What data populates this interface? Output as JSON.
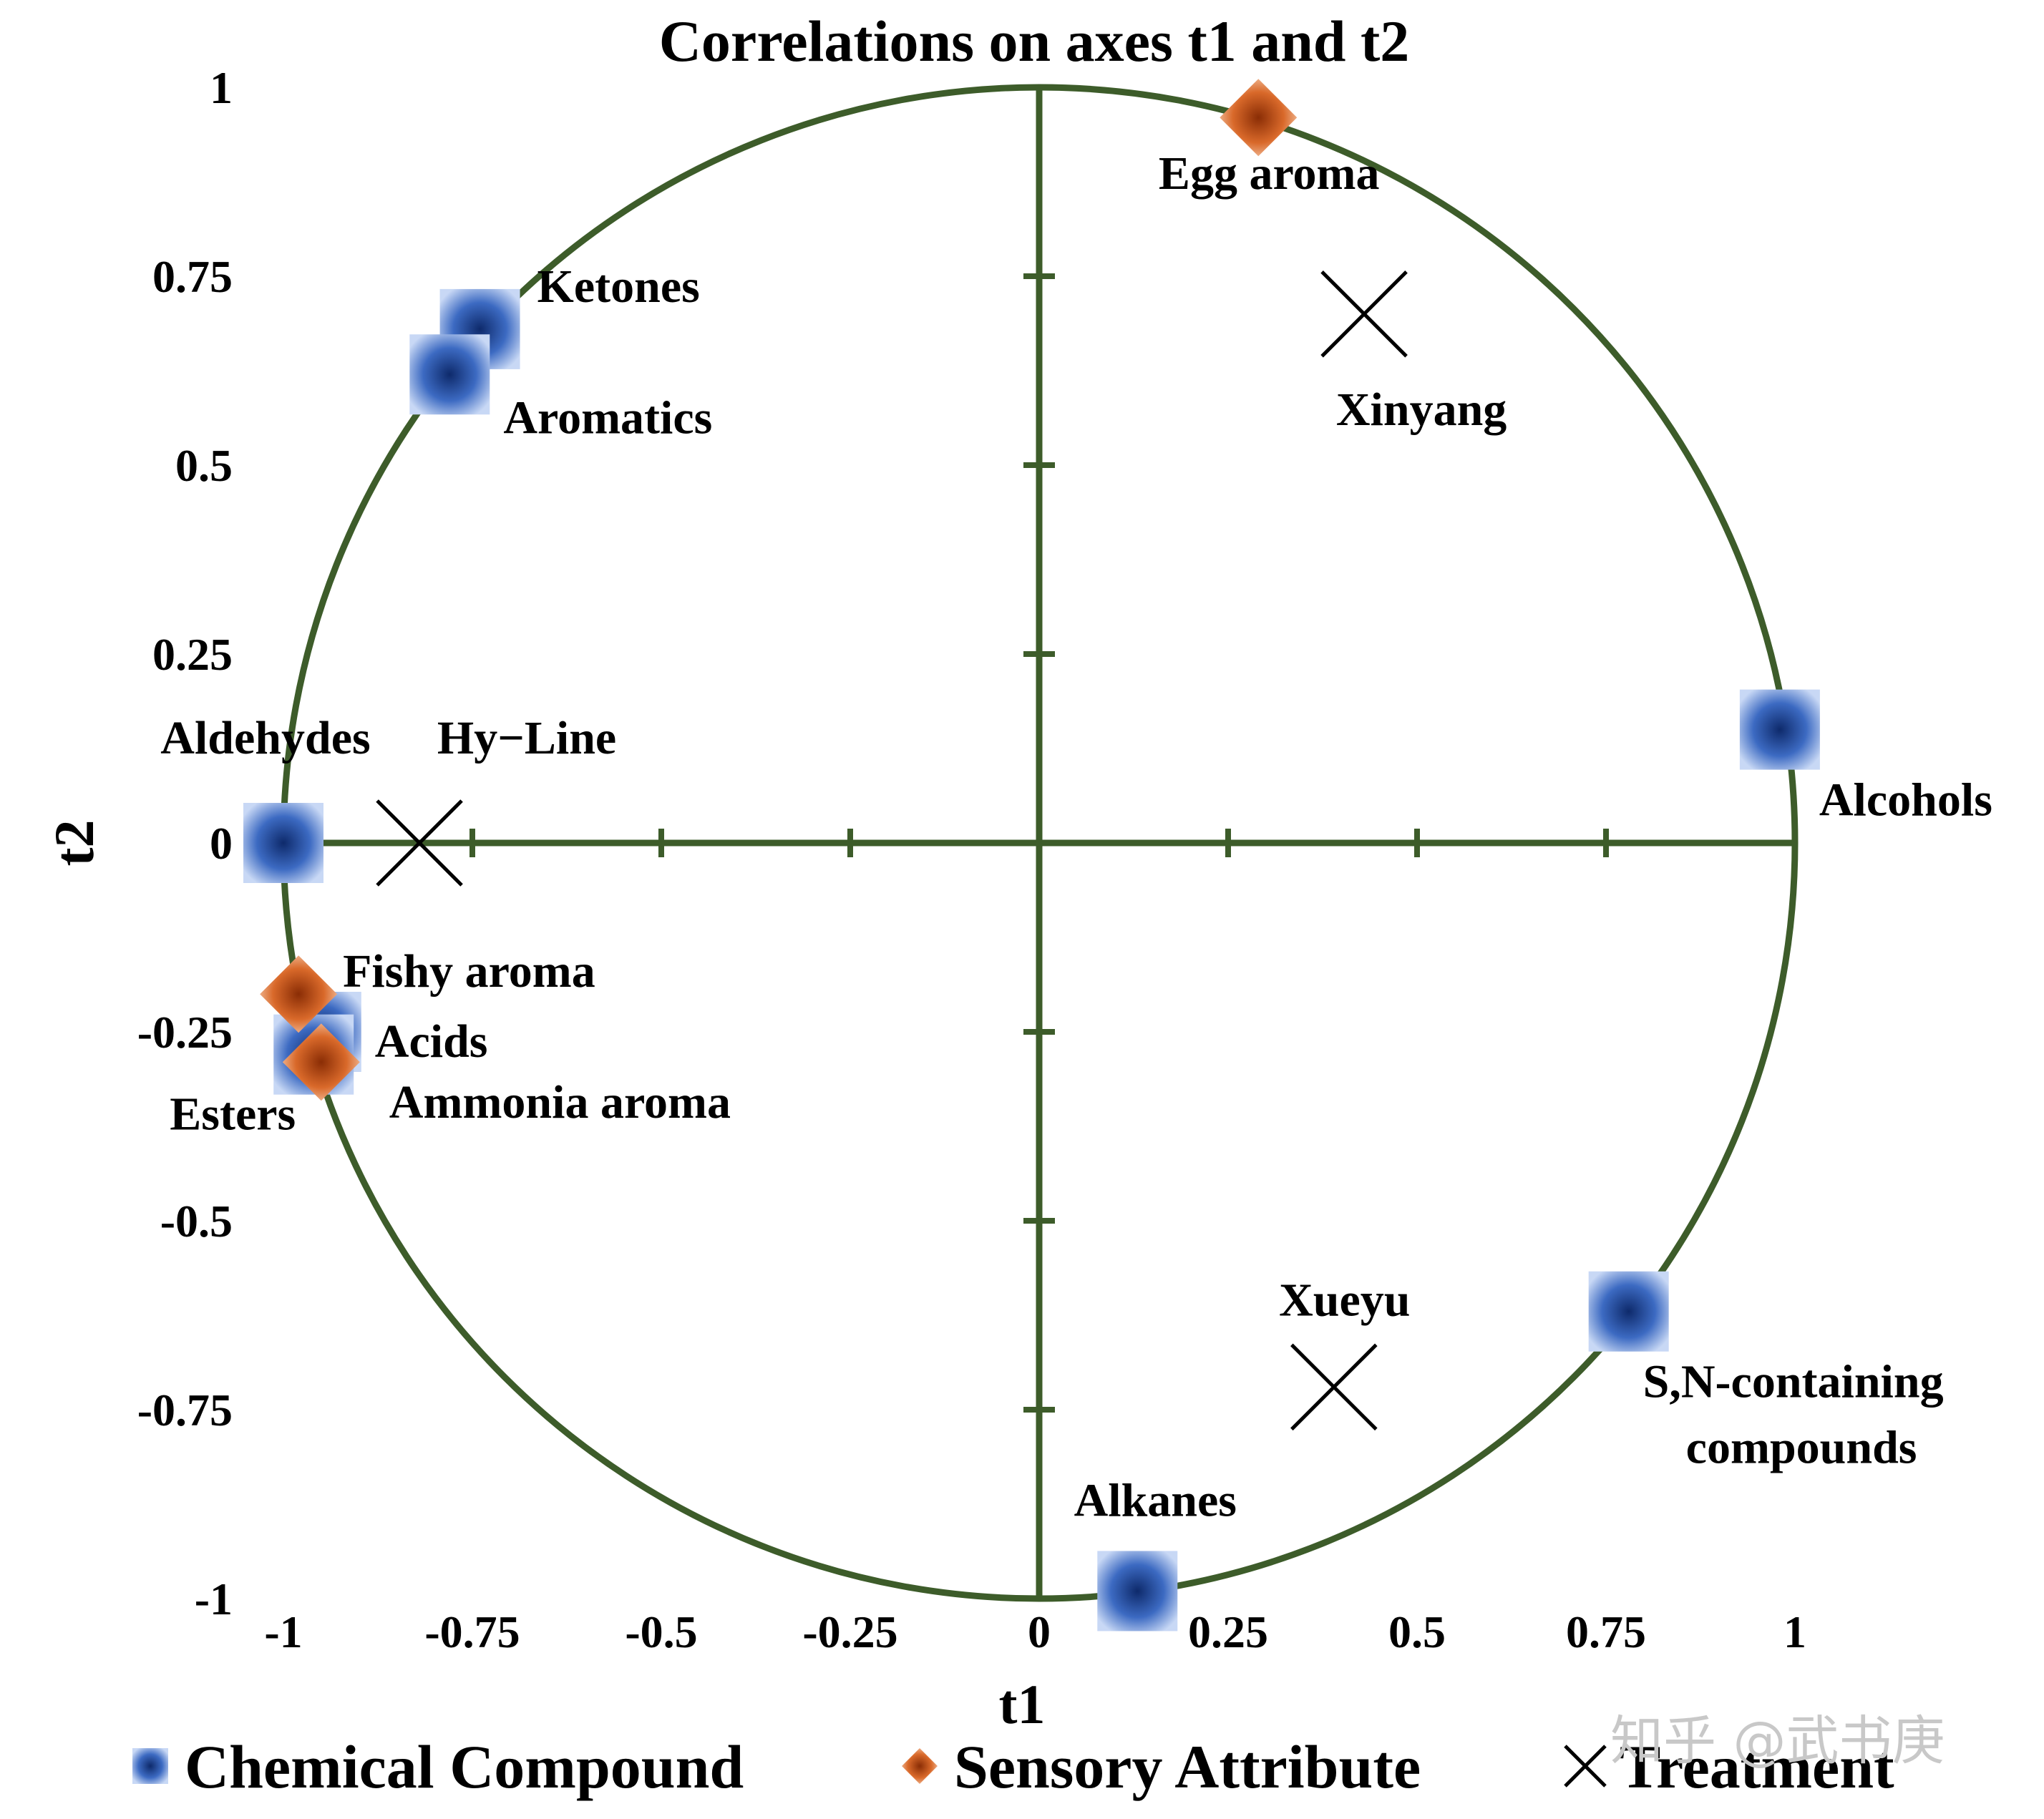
{
  "chart_data": {
    "type": "scatter",
    "title": "Correlations on axes t1 and t2",
    "xlabel": "t1",
    "ylabel": "t2",
    "xlim": [
      -1,
      1
    ],
    "ylim": [
      -1,
      1
    ],
    "x_ticks": [
      "-1",
      "-0.75",
      "-0.5",
      "-0.25",
      "0",
      "0.25",
      "0.5",
      "0.75",
      "1"
    ],
    "y_ticks": [
      "1",
      "0.75",
      "0.5",
      "0.25",
      "0",
      "-0.25",
      "-0.5",
      "-0.75",
      "-1"
    ],
    "unit_circle": true,
    "legend_position": "bottom",
    "series": [
      {
        "name": "Chemical Compound",
        "marker": "square",
        "color": "#2f56a6",
        "points": [
          {
            "label": "Ketones",
            "x": -0.74,
            "y": 0.68
          },
          {
            "label": "Aromatics",
            "x": -0.78,
            "y": 0.62
          },
          {
            "label": "Aldehydes",
            "x": -1.0,
            "y": 0.0
          },
          {
            "label": "Alcohols",
            "x": 0.98,
            "y": 0.15
          },
          {
            "label": "Acids",
            "x": -0.95,
            "y": -0.25
          },
          {
            "label": "Esters",
            "x": -0.96,
            "y": -0.28
          },
          {
            "label": "S,N-containing compounds",
            "x": 0.78,
            "y": -0.62
          },
          {
            "label": "Alkanes",
            "x": 0.13,
            "y": -0.99
          }
        ]
      },
      {
        "name": "Sensory Attribute",
        "marker": "diamond",
        "color": "#d9692a",
        "points": [
          {
            "label": "Egg aroma",
            "x": 0.29,
            "y": 0.96
          },
          {
            "label": "Fishy aroma",
            "x": -0.98,
            "y": -0.2
          },
          {
            "label": "Ammonia aroma",
            "x": -0.95,
            "y": -0.29
          }
        ]
      },
      {
        "name": "Treatment",
        "marker": "x",
        "color": "#000000",
        "points": [
          {
            "label": "Xinyang",
            "x": 0.43,
            "y": 0.7
          },
          {
            "label": "Hy−Line",
            "x": -0.82,
            "y": 0.0
          },
          {
            "label": "Xueyu",
            "x": 0.39,
            "y": -0.72
          }
        ]
      }
    ]
  },
  "watermark": "知乎 @武书庚",
  "colors": {
    "axis": "#3d5c2a",
    "compound": "#2f56a6",
    "sensory": "#d9692a",
    "treatment": "#000000"
  }
}
